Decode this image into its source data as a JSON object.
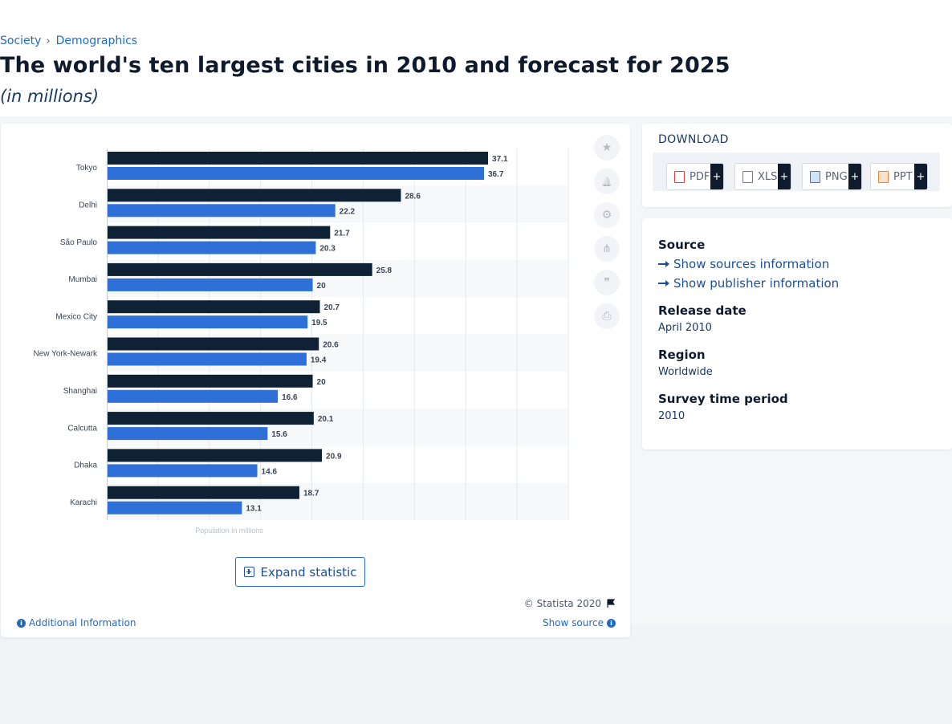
{
  "breadcrumb": {
    "items": [
      "Society",
      "Demographics"
    ],
    "separator": "›"
  },
  "title": "The world's ten largest cities in 2010 and forecast for 2025",
  "subtitle": "(in millions)",
  "toolbar": {
    "icons": [
      "star-icon",
      "bell-icon",
      "gear-icon",
      "share-icon",
      "quote-icon",
      "print-icon"
    ],
    "glyphs": [
      "★",
      "🔔",
      "⚙",
      "⋔",
      "❞",
      "⎙"
    ]
  },
  "expand_label": "Expand statistic",
  "copyright": "© Statista 2020",
  "additional_info": "Additional Information",
  "show_source": "Show source",
  "download": {
    "title": "DOWNLOAD",
    "buttons": [
      {
        "label": "PDF",
        "color": "#e0423a"
      },
      {
        "label": "XLS",
        "color": "#3aa55a"
      },
      {
        "label": "PNG",
        "color": "#2c7be5"
      },
      {
        "label": "PPT",
        "color": "#e8843a"
      }
    ],
    "plus": "+"
  },
  "info": {
    "source_label": "Source",
    "show_sources": "Show sources information",
    "show_publisher": "Show publisher information",
    "release_label": "Release date",
    "release_value": "April 2010",
    "region_label": "Region",
    "region_value": "Worldwide",
    "survey_label": "Survey time period",
    "survey_value": "2010"
  },
  "colors": {
    "series_2010": "#0f2135",
    "series_2025": "#2f6fd8",
    "link": "#1f6bc4"
  },
  "chart_data": {
    "type": "bar",
    "orientation": "horizontal",
    "categories": [
      "Tokyo",
      "Delhi",
      "São Paulo",
      "Mumbai",
      "Mexico City",
      "New York-Newark",
      "Shanghai",
      "Calcutta",
      "Dhaka",
      "Karachi"
    ],
    "series": [
      {
        "name": "2010",
        "values": [
          37.1,
          28.6,
          21.7,
          25.8,
          20.7,
          20.6,
          20,
          20.1,
          20.9,
          18.7
        ]
      },
      {
        "name": "2025",
        "values": [
          36.7,
          22.2,
          20.3,
          20,
          19.5,
          19.4,
          16.6,
          15.6,
          14.6,
          13.1
        ]
      }
    ],
    "xlabel": "Population in millions",
    "xlim": [
      0,
      45
    ]
  }
}
